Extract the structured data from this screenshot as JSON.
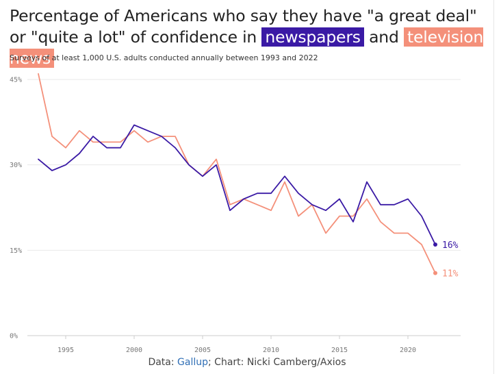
{
  "title": {
    "part1": "Percentage of Americans who say they have \"a great deal\" or \"quite a lot\" of confidence in ",
    "newspapers": "newspapers",
    "and": " and ",
    "television": "television news"
  },
  "subtitle": "Surveys of at least 1,000 U.S. adults conducted annually between 1993 and 2022",
  "source": {
    "prefix": "Data: ",
    "link": "Gallup",
    "suffix": "; Chart: Nicki Camberg/Axios"
  },
  "colors": {
    "newspapers": "#3a1aa5",
    "television": "#f4907a",
    "grid": "#e9e9e9",
    "axis": "#cccccc"
  },
  "chart_data": {
    "type": "line",
    "title": "Percentage of Americans who say they have \"a great deal\" or \"quite a lot\" of confidence in newspapers and television news",
    "x": [
      1993,
      1994,
      1995,
      1996,
      1997,
      1998,
      1999,
      2000,
      2001,
      2002,
      2003,
      2004,
      2005,
      2006,
      2007,
      2008,
      2009,
      2010,
      2011,
      2012,
      2013,
      2014,
      2015,
      2016,
      2017,
      2018,
      2019,
      2020,
      2021,
      2022
    ],
    "series": [
      {
        "name": "newspapers",
        "values": [
          31,
          29,
          30,
          32,
          35,
          33,
          33,
          37,
          36,
          35,
          33,
          30,
          28,
          30,
          22,
          24,
          25,
          25,
          28,
          25,
          23,
          22,
          24,
          20,
          27,
          23,
          23,
          24,
          21,
          16
        ],
        "end_label": "16%"
      },
      {
        "name": "television news",
        "values": [
          46,
          35,
          33,
          36,
          34,
          34,
          34,
          36,
          34,
          35,
          35,
          30,
          28,
          31,
          23,
          24,
          23,
          22,
          27,
          21,
          23,
          18,
          21,
          21,
          24,
          20,
          18,
          18,
          16,
          11
        ],
        "end_label": "11%"
      }
    ],
    "xlim": [
      1992.2,
      2024.2
    ],
    "ylim": [
      0,
      45
    ],
    "yticks": [
      0,
      15,
      30,
      45
    ],
    "ytick_labels": [
      "0%",
      "15%",
      "30%",
      "45%"
    ],
    "xticks": [
      1995,
      2000,
      2005,
      2010,
      2015,
      2020
    ],
    "xtick_labels": [
      "1995",
      "2000",
      "2005",
      "2010",
      "2015",
      "2020"
    ],
    "xlabel": "",
    "ylabel": "",
    "grid": true,
    "legend": "highlighted words in title"
  }
}
